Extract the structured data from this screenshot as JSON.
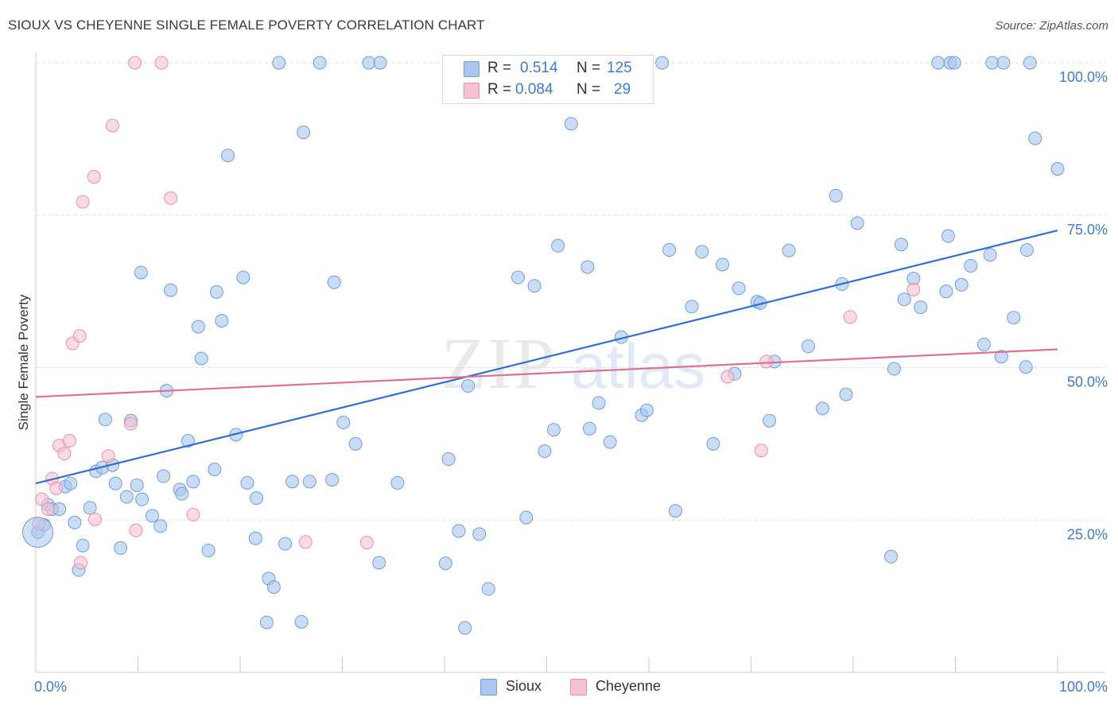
{
  "title": "SIOUX VS CHEYENNE SINGLE FEMALE POVERTY CORRELATION CHART",
  "source": "Source: ZipAtlas.com",
  "watermark": {
    "zip": "ZIP",
    "atlas": "atlas"
  },
  "legend": {
    "rows": [
      {
        "r_label": "R =",
        "r_value": "0.514",
        "n_label": "N =",
        "n_value": "125",
        "color": "#a9c6ef",
        "border": "#6f9ddf"
      },
      {
        "r_label": "R =",
        "r_value": "0.084",
        "n_label": "N =",
        "n_value": "29",
        "color": "#f6c1d0",
        "border": "#ea8faa"
      }
    ]
  },
  "bottom_legend": [
    {
      "label": "Sioux",
      "color": "#a9c6ef",
      "border": "#6f9ddf"
    },
    {
      "label": "Cheyenne",
      "color": "#f6c1d0",
      "border": "#ea8faa"
    }
  ],
  "chart_data": {
    "type": "scatter",
    "title": "SIOUX VS CHEYENNE SINGLE FEMALE POVERTY CORRELATION CHART",
    "xlabel": "",
    "ylabel": "Single Female Poverty",
    "xlim": [
      0,
      100
    ],
    "ylim": [
      0,
      100
    ],
    "x_tick_labels": [
      "0.0%",
      "100.0%"
    ],
    "y_tick_labels": [
      "25.0%",
      "50.0%",
      "75.0%",
      "100.0%"
    ],
    "y_gridlines": [
      25,
      50,
      75,
      100
    ],
    "series": [
      {
        "name": "Sioux",
        "color": "#6f9ddf",
        "fill": "#a9c6ef",
        "line_color": "#2d6fd2",
        "trend": {
          "x": [
            0,
            100
          ],
          "y": [
            31,
            72.5
          ]
        },
        "points": [
          [
            0.2,
            23.0
          ],
          [
            0.8,
            24.2
          ],
          [
            1.2,
            27.5
          ],
          [
            1.6,
            26.8
          ],
          [
            2.3,
            26.8
          ],
          [
            2.9,
            30.5
          ],
          [
            3.4,
            31.0
          ],
          [
            3.8,
            24.6
          ],
          [
            4.2,
            16.8
          ],
          [
            4.6,
            20.8
          ],
          [
            5.3,
            27.0
          ],
          [
            5.9,
            33.0
          ],
          [
            6.5,
            33.6
          ],
          [
            6.8,
            41.5
          ],
          [
            7.5,
            34.0
          ],
          [
            7.8,
            31.0
          ],
          [
            8.3,
            20.4
          ],
          [
            8.9,
            28.8
          ],
          [
            9.3,
            41.3
          ],
          [
            9.9,
            30.7
          ],
          [
            10.4,
            28.4
          ],
          [
            10.3,
            65.6
          ],
          [
            11.4,
            25.7
          ],
          [
            12.2,
            24.0
          ],
          [
            12.5,
            32.2
          ],
          [
            12.8,
            46.2
          ],
          [
            13.2,
            62.7
          ],
          [
            14.1,
            30.0
          ],
          [
            14.3,
            29.3
          ],
          [
            14.9,
            38.0
          ],
          [
            15.4,
            31.3
          ],
          [
            15.9,
            56.7
          ],
          [
            16.2,
            51.5
          ],
          [
            16.9,
            20.0
          ],
          [
            17.5,
            33.3
          ],
          [
            17.7,
            62.4
          ],
          [
            18.2,
            57.7
          ],
          [
            18.8,
            84.8
          ],
          [
            19.6,
            39.0
          ],
          [
            20.3,
            64.8
          ],
          [
            20.7,
            31.1
          ],
          [
            21.5,
            22.0
          ],
          [
            21.6,
            28.6
          ],
          [
            22.6,
            8.2
          ],
          [
            22.8,
            15.4
          ],
          [
            23.3,
            14.0
          ],
          [
            23.8,
            100.0
          ],
          [
            24.4,
            21.1
          ],
          [
            25.1,
            31.3
          ],
          [
            26.0,
            8.3
          ],
          [
            26.2,
            88.6
          ],
          [
            26.8,
            31.3
          ],
          [
            27.8,
            100.0
          ],
          [
            29.0,
            31.6
          ],
          [
            29.2,
            64.0
          ],
          [
            30.1,
            41.0
          ],
          [
            31.3,
            37.5
          ],
          [
            32.6,
            100.0
          ],
          [
            33.6,
            18.0
          ],
          [
            33.7,
            100.0
          ],
          [
            35.4,
            31.1
          ],
          [
            40.1,
            17.9
          ],
          [
            40.4,
            35.0
          ],
          [
            41.4,
            23.2
          ],
          [
            42.0,
            7.3
          ],
          [
            42.3,
            47.0
          ],
          [
            43.0,
            100.0
          ],
          [
            43.4,
            22.7
          ],
          [
            44.3,
            13.7
          ],
          [
            47.2,
            64.8
          ],
          [
            48.0,
            25.4
          ],
          [
            48.8,
            63.4
          ],
          [
            49.8,
            36.3
          ],
          [
            50.7,
            39.8
          ],
          [
            51.1,
            70.0
          ],
          [
            52.4,
            90.0
          ],
          [
            54.0,
            66.5
          ],
          [
            54.2,
            40.0
          ],
          [
            55.1,
            44.2
          ],
          [
            56.2,
            37.8
          ],
          [
            57.3,
            55.0
          ],
          [
            59.3,
            42.2
          ],
          [
            59.8,
            43.0
          ],
          [
            61.3,
            100.0
          ],
          [
            62.0,
            69.3
          ],
          [
            62.6,
            26.5
          ],
          [
            64.2,
            60.0
          ],
          [
            65.2,
            69.0
          ],
          [
            66.3,
            37.5
          ],
          [
            67.2,
            66.9
          ],
          [
            68.4,
            49.0
          ],
          [
            68.8,
            63.0
          ],
          [
            70.6,
            60.8
          ],
          [
            70.9,
            60.6
          ],
          [
            71.8,
            41.3
          ],
          [
            72.3,
            51.0
          ],
          [
            73.7,
            69.2
          ],
          [
            75.6,
            53.5
          ],
          [
            77.0,
            43.3
          ],
          [
            78.3,
            78.2
          ],
          [
            78.9,
            63.7
          ],
          [
            79.3,
            45.6
          ],
          [
            80.4,
            73.7
          ],
          [
            83.7,
            19.0
          ],
          [
            84.0,
            49.8
          ],
          [
            84.7,
            70.2
          ],
          [
            85.0,
            61.2
          ],
          [
            85.9,
            64.6
          ],
          [
            86.6,
            59.9
          ],
          [
            88.3,
            100.0
          ],
          [
            89.1,
            62.5
          ],
          [
            89.3,
            71.6
          ],
          [
            89.5,
            100.0
          ],
          [
            89.9,
            100.0
          ],
          [
            90.6,
            63.6
          ],
          [
            91.5,
            66.7
          ],
          [
            92.8,
            53.8
          ],
          [
            93.4,
            68.5
          ],
          [
            93.6,
            100.0
          ],
          [
            94.5,
            51.8
          ],
          [
            94.7,
            100.0
          ],
          [
            95.7,
            58.2
          ],
          [
            96.9,
            50.1
          ],
          [
            97.0,
            69.3
          ],
          [
            97.3,
            100.0
          ],
          [
            97.8,
            87.6
          ],
          [
            100.0,
            82.6
          ]
        ]
      },
      {
        "name": "Cheyenne",
        "color": "#ea8faa",
        "fill": "#f6c1d0",
        "line_color": "#e06e95",
        "trend": {
          "x": [
            0,
            100
          ],
          "y": [
            45.2,
            53.0
          ]
        },
        "points": [
          [
            0.3,
            24.4
          ],
          [
            0.6,
            28.4
          ],
          [
            1.2,
            26.8
          ],
          [
            1.6,
            31.8
          ],
          [
            2.0,
            30.2
          ],
          [
            2.3,
            37.2
          ],
          [
            2.8,
            35.9
          ],
          [
            3.3,
            38.0
          ],
          [
            3.6,
            54.0
          ],
          [
            4.3,
            55.2
          ],
          [
            4.4,
            18.0
          ],
          [
            4.6,
            77.2
          ],
          [
            5.7,
            81.3
          ],
          [
            5.8,
            25.1
          ],
          [
            7.1,
            35.5
          ],
          [
            7.5,
            89.7
          ],
          [
            9.3,
            40.8
          ],
          [
            9.7,
            100.0
          ],
          [
            9.8,
            23.3
          ],
          [
            12.3,
            100.0
          ],
          [
            13.2,
            77.8
          ],
          [
            15.4,
            25.9
          ],
          [
            26.4,
            21.4
          ],
          [
            32.4,
            21.3
          ],
          [
            67.7,
            48.5
          ],
          [
            71.0,
            36.4
          ],
          [
            71.5,
            51.0
          ],
          [
            79.7,
            58.3
          ],
          [
            85.9,
            62.8
          ]
        ]
      }
    ]
  }
}
